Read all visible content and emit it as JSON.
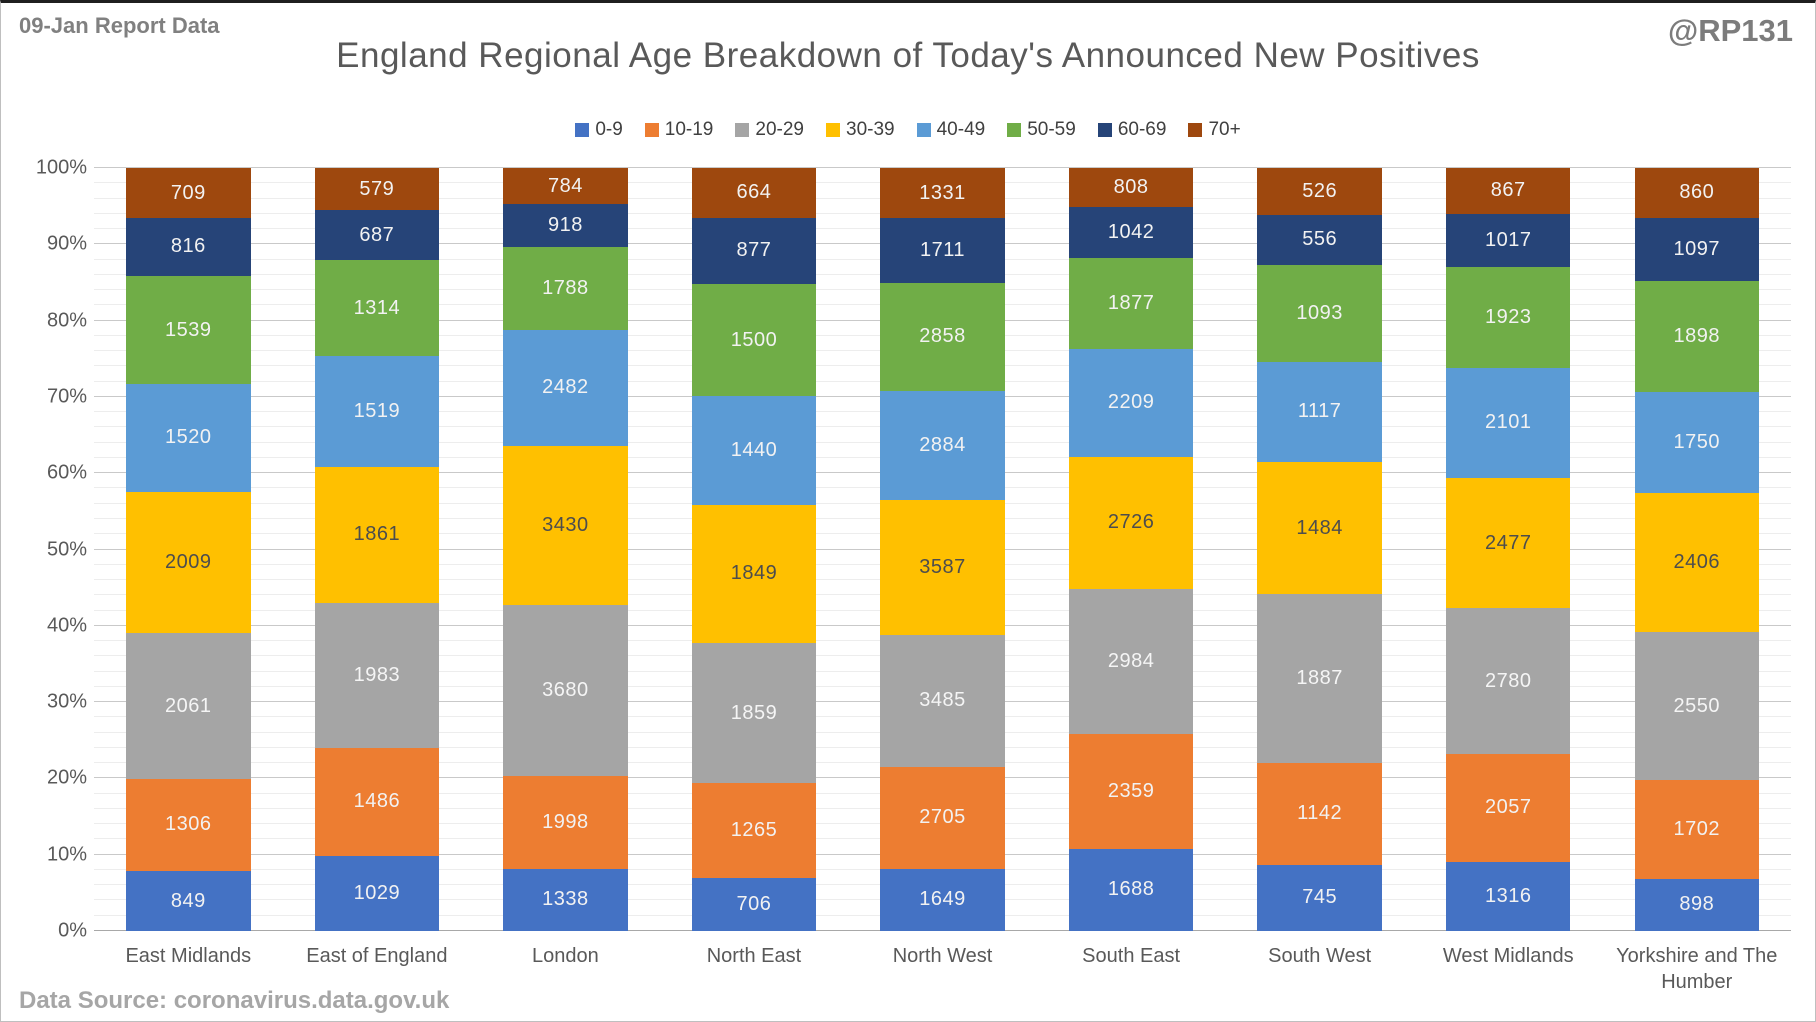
{
  "header": {
    "report_label": "09-Jan Report Data",
    "watermark": "@RP131",
    "title": "England Regional Age Breakdown of Today's Announced New Positives"
  },
  "footer": {
    "source": "Data Source: coronavirus.data.gov.uk"
  },
  "chart_data": {
    "type": "bar",
    "stacked": "percent",
    "title": "England Regional Age Breakdown of Today's Announced New Positives",
    "xlabel": "",
    "ylabel": "",
    "ylim": [
      0,
      100
    ],
    "y_ticks": [
      "0%",
      "10%",
      "20%",
      "30%",
      "40%",
      "50%",
      "60%",
      "70%",
      "80%",
      "90%",
      "100%"
    ],
    "grid": {
      "major_pct": 10,
      "minor_pct": 2,
      "on": true
    },
    "legend_position": "top",
    "categories": [
      "East Midlands",
      "East of England",
      "London",
      "North East",
      "North West",
      "South East",
      "South West",
      "West Midlands",
      "Yorkshire and The Humber"
    ],
    "series": [
      {
        "name": "0-9",
        "color": "#4472C4",
        "label_color": "#f2f2f2",
        "values": [
          849,
          1029,
          1338,
          706,
          1649,
          1688,
          745,
          1316,
          898
        ]
      },
      {
        "name": "10-19",
        "color": "#ED7D31",
        "label_color": "#f2f2f2",
        "values": [
          1306,
          1486,
          1998,
          1265,
          2705,
          2359,
          1142,
          2057,
          1702
        ]
      },
      {
        "name": "20-29",
        "color": "#A5A5A5",
        "label_color": "#f5f5f5",
        "values": [
          2061,
          1983,
          3680,
          1859,
          3485,
          2984,
          1887,
          2780,
          2550
        ]
      },
      {
        "name": "30-39",
        "color": "#FFC000",
        "label_color": "#4d4d4d",
        "values": [
          2009,
          1861,
          3430,
          1849,
          3587,
          2726,
          1484,
          2477,
          2406
        ]
      },
      {
        "name": "40-49",
        "color": "#5B9BD5",
        "label_color": "#f2f2f2",
        "values": [
          1520,
          1519,
          2482,
          1440,
          2884,
          2209,
          1117,
          2101,
          1750
        ]
      },
      {
        "name": "50-59",
        "color": "#70AD47",
        "label_color": "#f2f2f2",
        "values": [
          1539,
          1314,
          1788,
          1500,
          2858,
          1877,
          1093,
          1923,
          1898
        ]
      },
      {
        "name": "60-69",
        "color": "#264478",
        "label_color": "#f2f2f2",
        "values": [
          816,
          687,
          918,
          877,
          1711,
          1042,
          556,
          1017,
          1097
        ]
      },
      {
        "name": "70+",
        "color": "#9E480E",
        "label_color": "#f2f2f2",
        "values": [
          709,
          579,
          784,
          664,
          1331,
          808,
          526,
          867,
          860
        ]
      }
    ]
  }
}
